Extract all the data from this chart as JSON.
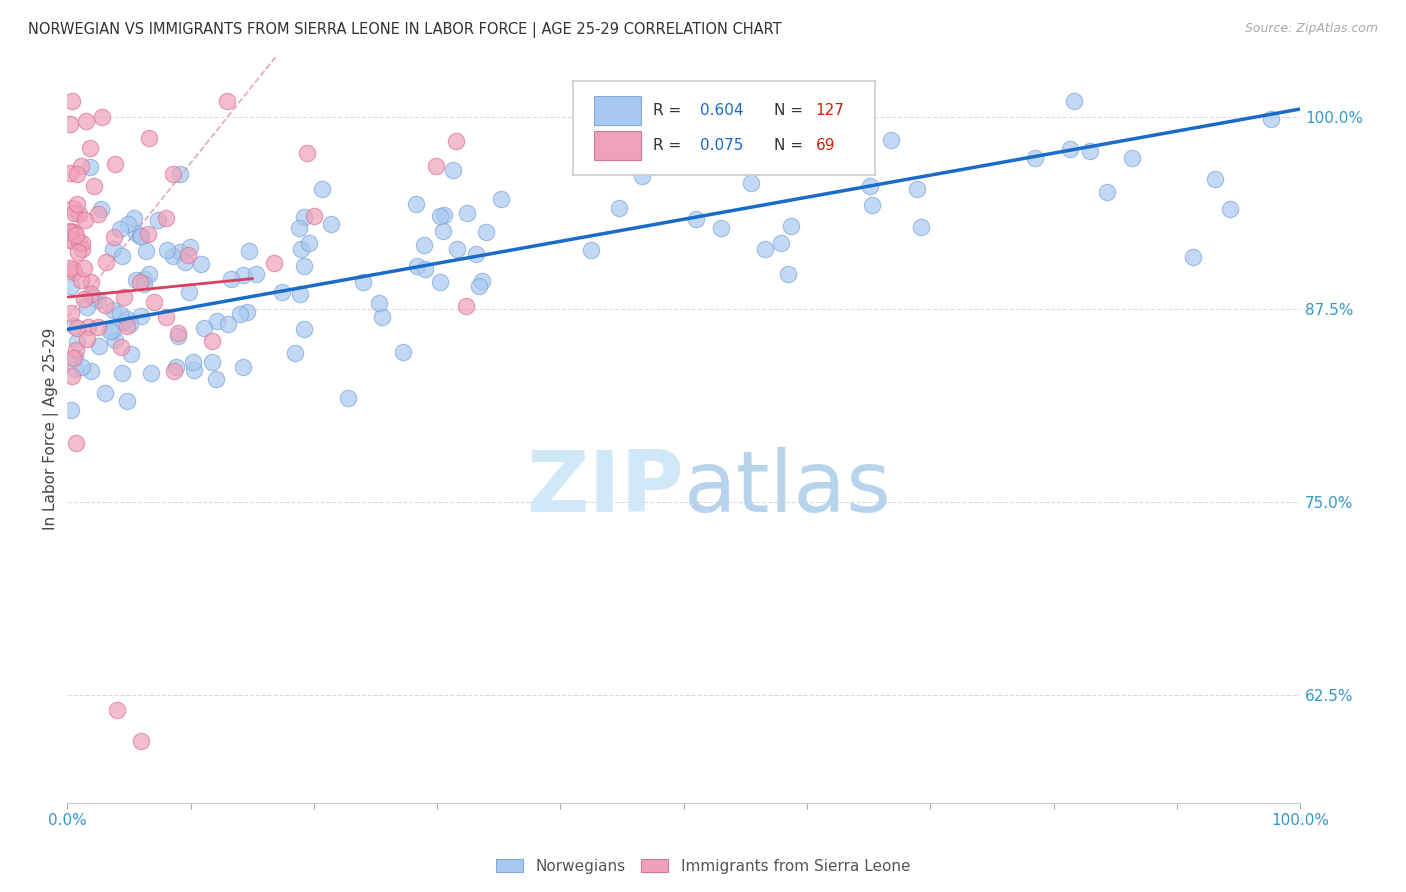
{
  "title": "NORWEGIAN VS IMMIGRANTS FROM SIERRA LEONE IN LABOR FORCE | AGE 25-29 CORRELATION CHART",
  "source": "Source: ZipAtlas.com",
  "ylabel": "In Labor Force | Age 25-29",
  "xlim": [
    0.0,
    1.0
  ],
  "ylim": [
    0.555,
    1.04
  ],
  "yticks": [
    0.625,
    0.75,
    0.875,
    1.0
  ],
  "ytick_labels": [
    "62.5%",
    "75.0%",
    "87.5%",
    "100.0%"
  ],
  "xticks": [
    0.0,
    0.1,
    0.2,
    0.3,
    0.4,
    0.5,
    0.6,
    0.7,
    0.8,
    0.9,
    1.0
  ],
  "xtick_labels": [
    "0.0%",
    "",
    "",
    "",
    "",
    "",
    "",
    "",
    "",
    "",
    "100.0%"
  ],
  "norwegian_R": 0.604,
  "norwegian_N": 127,
  "sierra_leone_R": 0.075,
  "sierra_leone_N": 69,
  "blue_color": "#A8C8F0",
  "pink_color": "#F0A0B8",
  "blue_edge_color": "#80A8D8",
  "pink_edge_color": "#D87898",
  "blue_line_color": "#1A6CC8",
  "pink_line_color": "#D84060",
  "diagonal_color": "#E0A0B0",
  "grid_color": "#CCCCCC",
  "title_color": "#333333",
  "source_color": "#AAAAAA",
  "axis_label_color": "#444444",
  "tick_label_color": "#3399CC",
  "legend_label_color": "#333333",
  "legend_R_color": "#1A6CC8",
  "legend_N_color": "#CC2200",
  "background_color": "#FFFFFF",
  "watermark_color": "#D0E8F8",
  "nor_trend_x0": 0.0,
  "nor_trend_y0": 0.862,
  "nor_trend_x1": 1.0,
  "nor_trend_y1": 1.005,
  "sl_trend_x0": 0.0,
  "sl_trend_y0": 0.883,
  "sl_trend_x1": 0.15,
  "sl_trend_y1": 0.895
}
